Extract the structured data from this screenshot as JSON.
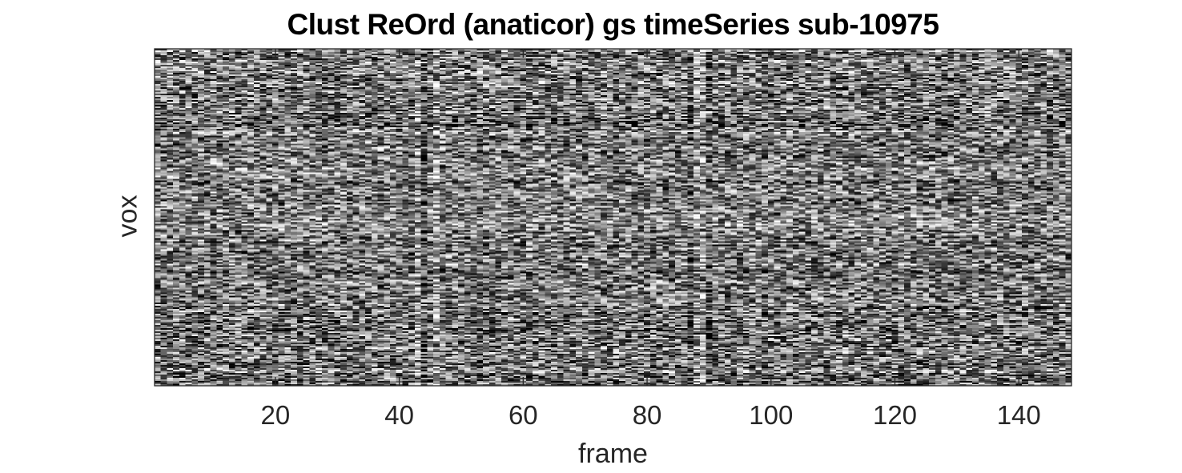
{
  "chart_data": {
    "type": "heatmap",
    "title": "Clust ReOrd (anaticor) gs timeSeries sub-10975",
    "xlabel": "frame",
    "ylabel": "vox",
    "xlim": [
      0.5,
      148.5
    ],
    "xticks": [
      20,
      40,
      60,
      80,
      100,
      120,
      140
    ],
    "yticks": [],
    "colormap": "gray",
    "n_frames": 148,
    "grid": false,
    "notable_bright_columns": [
      43,
      46,
      88,
      89
    ],
    "notable_dark_columns": [
      44,
      87,
      90
    ]
  },
  "colors": {
    "axis": "#262626",
    "background": "#ffffff"
  }
}
